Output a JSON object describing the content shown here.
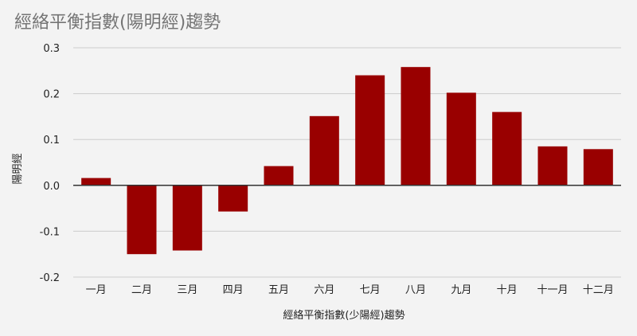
{
  "chart_data": {
    "type": "bar",
    "title": "經絡平衡指數(陽明經)趨勢",
    "xlabel": "經絡平衡指數(少陽經)趨勢",
    "ylabel": "陽明經",
    "categories": [
      "一月",
      "二月",
      "三月",
      "四月",
      "五月",
      "六月",
      "七月",
      "八月",
      "九月",
      "十月",
      "十一月",
      "十二月"
    ],
    "values": [
      0.016,
      -0.15,
      -0.142,
      -0.057,
      0.042,
      0.151,
      0.24,
      0.258,
      0.202,
      0.16,
      0.085,
      0.079
    ],
    "ylim": [
      -0.2,
      0.3
    ],
    "yticks": [
      -0.2,
      -0.1,
      0.0,
      0.1,
      0.2,
      0.3
    ],
    "ytick_labels": [
      "-0.2",
      "-0.1",
      "0.0",
      "0.1",
      "0.2",
      "0.3"
    ],
    "grid": true,
    "legend": "none",
    "colors": {
      "bar": "#990000",
      "background": "#f3f3f3",
      "grid": "#cccccc",
      "zero_line": "#333333",
      "title": "#757575"
    }
  }
}
